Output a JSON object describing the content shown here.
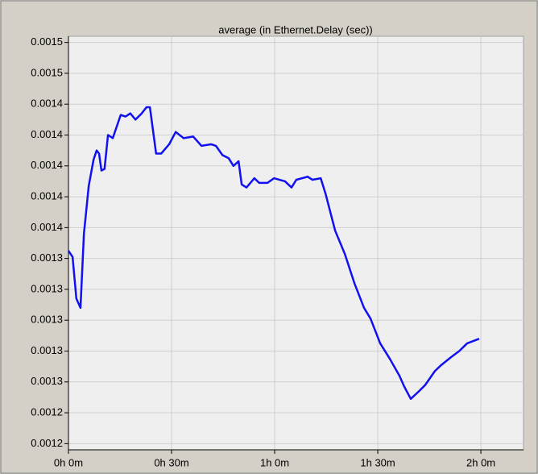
{
  "chart_data": {
    "type": "line",
    "title": "average (in Ethernet.Delay (sec))",
    "x": [
      0,
      1.2,
      2.3,
      3.5,
      4.5,
      5.9,
      7.3,
      8.2,
      8.9,
      9.6,
      10.5,
      11.5,
      12.9,
      15.2,
      16.6,
      18,
      19.5,
      21.3,
      22.7,
      23.7,
      25.5,
      27,
      29.3,
      31.2,
      33.5,
      36.3,
      38.7,
      41.5,
      42.9,
      44.8,
      46.6,
      48,
      49.5,
      50.4,
      51.8,
      54.1,
      55.5,
      57.9,
      59.8,
      63,
      64.9,
      66.3,
      69.6,
      71,
      73.4,
      74.8,
      77.6,
      80.4,
      83.2,
      86,
      87.9,
      90.7,
      93.5,
      96.3,
      97.7,
      99.6,
      102,
      103.8,
      106.6,
      108.5,
      111.3,
      113.7,
      116,
      118.4,
      119.5
    ],
    "series": [
      {
        "name": "average",
        "color": "#1010f0",
        "values": [
          0.001345,
          0.001341,
          0.001314,
          0.001308,
          0.001356,
          0.001387,
          0.001404,
          0.00141,
          0.001408,
          0.001397,
          0.001398,
          0.00142,
          0.001418,
          0.001433,
          0.001432,
          0.001434,
          0.00143,
          0.001434,
          0.001438,
          0.001438,
          0.001408,
          0.001408,
          0.001414,
          0.001422,
          0.001418,
          0.001419,
          0.001413,
          0.001414,
          0.001413,
          0.001407,
          0.001405,
          0.0014,
          0.001403,
          0.001388,
          0.001386,
          0.001392,
          0.001389,
          0.001389,
          0.001392,
          0.00139,
          0.001386,
          0.001391,
          0.001393,
          0.001391,
          0.001392,
          0.001382,
          0.001358,
          0.001343,
          0.001324,
          0.001308,
          0.001301,
          0.001285,
          0.001275,
          0.001264,
          0.001257,
          0.001249,
          0.001254,
          0.001258,
          0.001267,
          0.001271,
          0.001276,
          0.00128,
          0.001285,
          0.001287,
          0.001288
        ]
      }
    ],
    "xlim": [
      0,
      132.4
    ],
    "xticks": [
      {
        "value": 0,
        "label": "0h 0m"
      },
      {
        "value": 30,
        "label": "0h 30m"
      },
      {
        "value": 60,
        "label": "1h 0m"
      },
      {
        "value": 90,
        "label": "1h 30m"
      },
      {
        "value": 120,
        "label": "2h 0m"
      }
    ],
    "ylim": [
      0.001216,
      0.001484
    ],
    "yticks": [
      {
        "value": 0.00122,
        "label": "0.0012"
      },
      {
        "value": 0.00124,
        "label": "0.0012"
      },
      {
        "value": 0.00126,
        "label": "0.0013"
      },
      {
        "value": 0.00128,
        "label": "0.0013"
      },
      {
        "value": 0.0013,
        "label": "0.0013"
      },
      {
        "value": 0.00132,
        "label": "0.0013"
      },
      {
        "value": 0.00134,
        "label": "0.0013"
      },
      {
        "value": 0.00136,
        "label": "0.0014"
      },
      {
        "value": 0.00138,
        "label": "0.0014"
      },
      {
        "value": 0.0014,
        "label": "0.0014"
      },
      {
        "value": 0.00142,
        "label": "0.0014"
      },
      {
        "value": 0.00144,
        "label": "0.0014"
      },
      {
        "value": 0.00146,
        "label": "0.0015"
      },
      {
        "value": 0.00148,
        "label": "0.0015"
      }
    ],
    "grid": true
  }
}
